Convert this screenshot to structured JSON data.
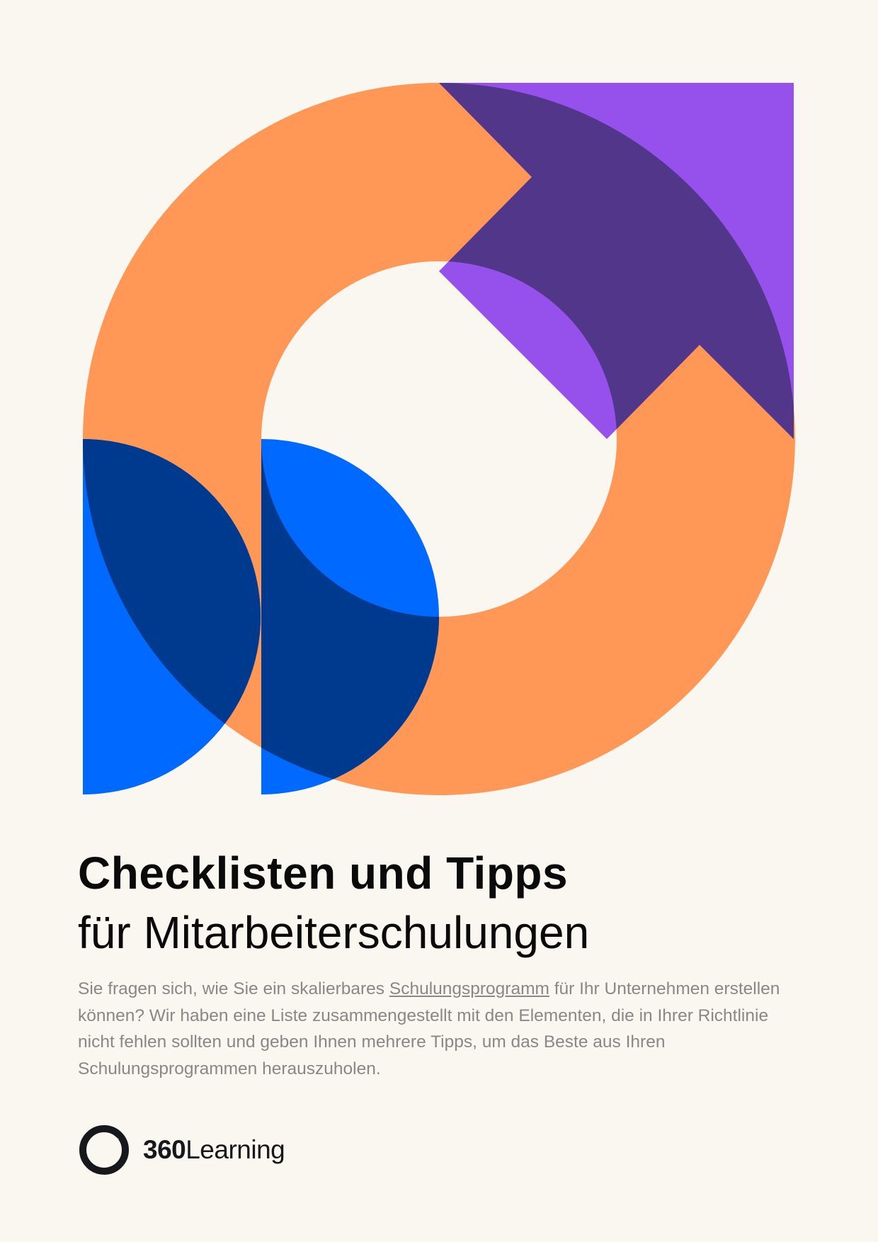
{
  "colors": {
    "background": "#FAF6F0",
    "orange": "#FF9757",
    "purple": "#9650EC",
    "dark_purple": "#52368A",
    "blue": "#0069FF",
    "dark_blue": "#003A8F",
    "text": "#0A0A0A",
    "body_text": "#8C8686"
  },
  "hero_graphic": {
    "icon": "circular-arrow-icon"
  },
  "heading": {
    "title": "Checklisten und Tipps",
    "subtitle": "für Mitarbeiterschulungen"
  },
  "intro": {
    "before_link": "Sie fragen sich, wie Sie ein skalierbares ",
    "link": "Schulungsprogramm",
    "after_link": " für Ihr Unternehmen erstellen können? Wir haben eine Liste zusammengestellt mit den Elementen, die in Ihrer Richtlinie nicht fehlen sollten und geben Ihnen mehrere Tipps, um das Beste aus Ihren Schulungsprogrammen herauszuholen."
  },
  "brand": {
    "number": "360",
    "word": "Learning",
    "logo_icon": "ring-logo-icon"
  }
}
